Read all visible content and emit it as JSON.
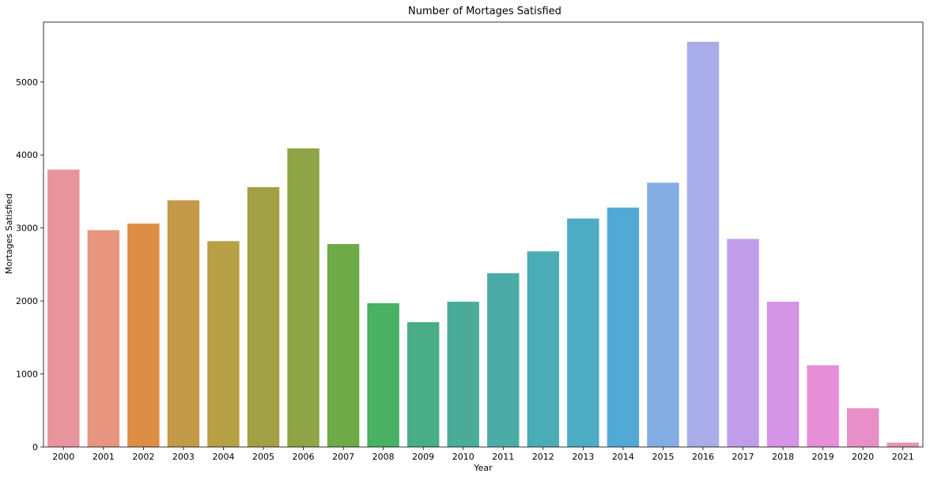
{
  "chart_data": {
    "type": "bar",
    "title": "Number of Mortages Satisfied",
    "xlabel": "Year",
    "ylabel": "Mortages Satisfied",
    "categories": [
      "2000",
      "2001",
      "2002",
      "2003",
      "2004",
      "2005",
      "2006",
      "2007",
      "2008",
      "2009",
      "2010",
      "2011",
      "2012",
      "2013",
      "2014",
      "2015",
      "2016",
      "2017",
      "2018",
      "2019",
      "2020",
      "2021"
    ],
    "values": [
      3800,
      2970,
      3060,
      3380,
      2820,
      3560,
      4090,
      2780,
      1970,
      1710,
      1990,
      2380,
      2680,
      3130,
      3280,
      3620,
      5550,
      2850,
      1990,
      1120,
      530,
      60
    ],
    "colors": [
      "#e8949c",
      "#e8957f",
      "#dd8e45",
      "#c39a4a",
      "#b7a046",
      "#a2a045",
      "#8fa446",
      "#6eab46",
      "#48b164",
      "#49ae87",
      "#4aac98",
      "#4baca7",
      "#4cacb6",
      "#4dacc4",
      "#53a9d6",
      "#84ade3",
      "#a8ade9",
      "#c19de9",
      "#d594e5",
      "#e68fd8",
      "#e88fc8",
      "#e892b6"
    ],
    "ylim": [
      0,
      5820
    ],
    "yticks": [
      0,
      1000,
      2000,
      3000,
      4000,
      5000
    ],
    "grid": false,
    "legend": false
  }
}
